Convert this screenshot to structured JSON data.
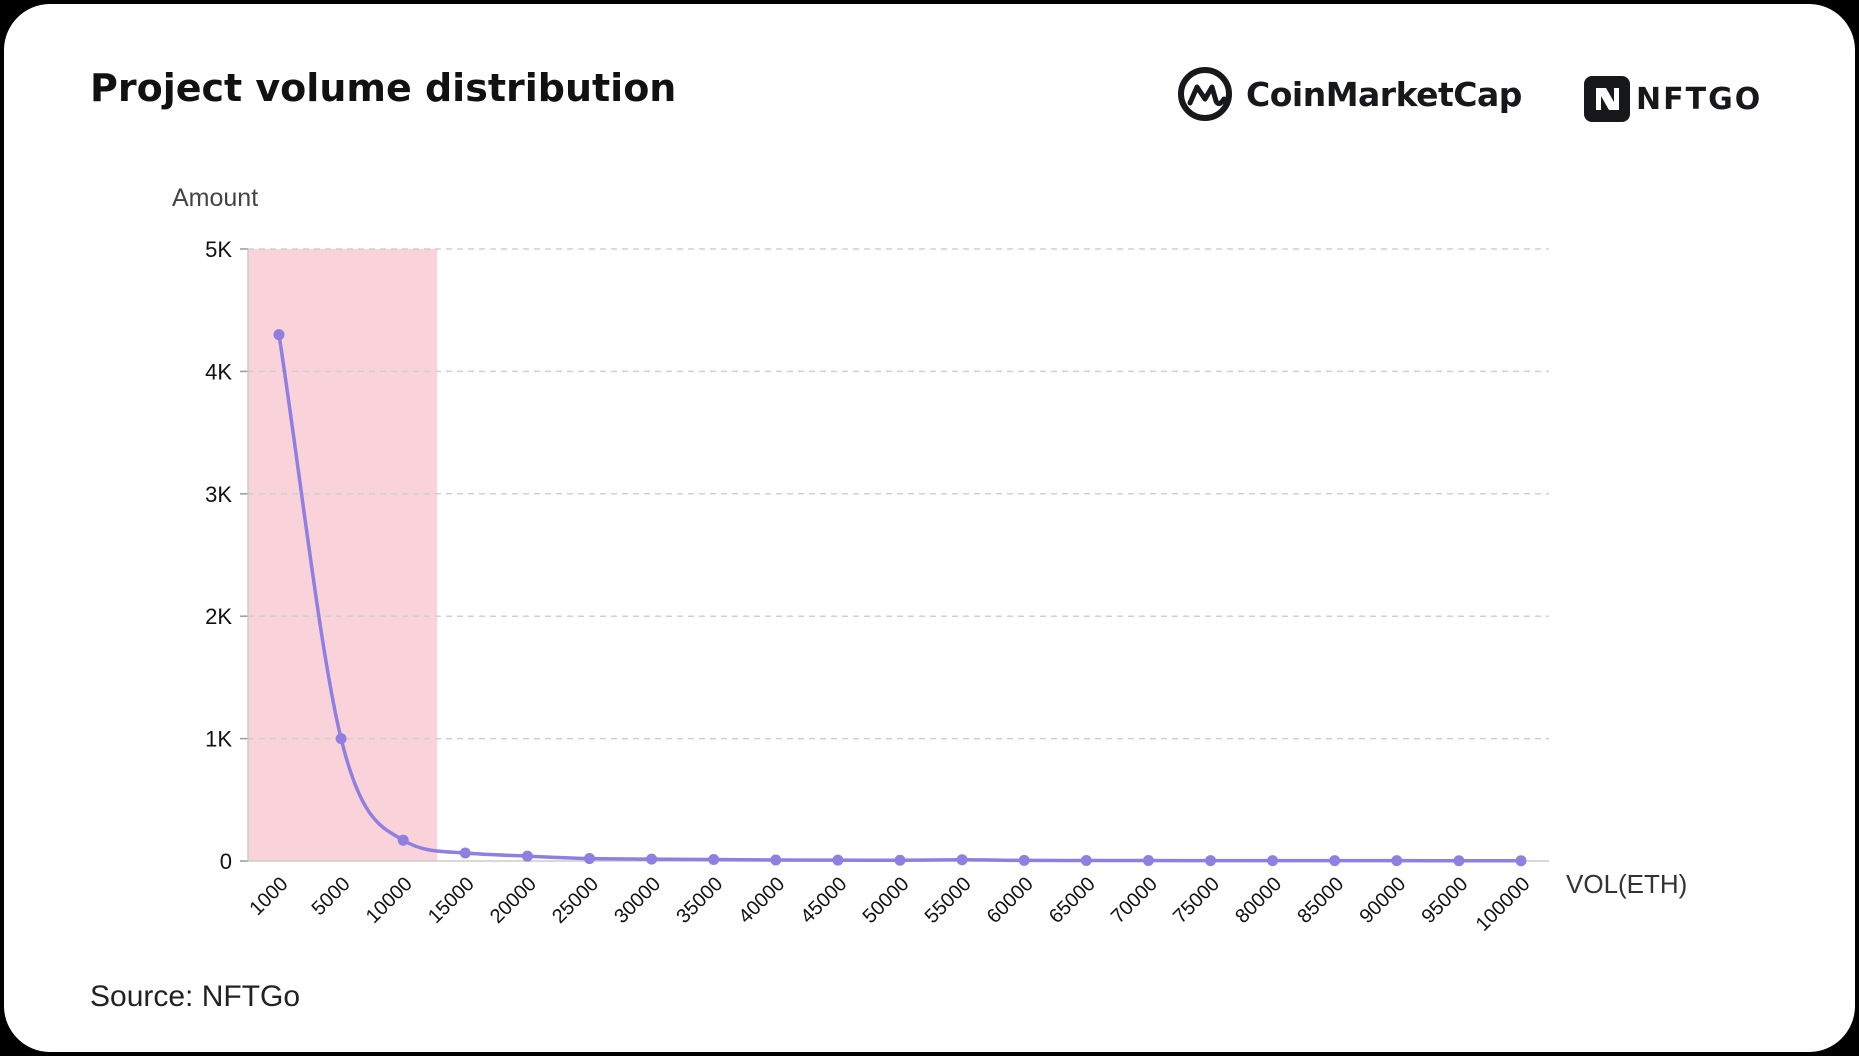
{
  "header": {
    "title": "Project volume distribution",
    "brand_cmc": "CoinMarketCap",
    "brand_nftgo": "NFTGO"
  },
  "footer": {
    "source": "Source: NFTGo"
  },
  "colors": {
    "line": "#8f7fe0",
    "highlight": "#f9d2da",
    "grid": "#d0d0d0",
    "axis": "#cccccc",
    "text": "#111111"
  },
  "chart_data": {
    "type": "line",
    "title": "Project volume distribution",
    "xlabel": "VOL(ETH)",
    "ylabel": "Amount",
    "ylim": [
      0,
      5000
    ],
    "yticks": [
      0,
      1000,
      2000,
      3000,
      4000,
      5000
    ],
    "ytick_labels": [
      "0",
      "1K",
      "2K",
      "3K",
      "4K",
      "5K"
    ],
    "grid": "horizontal dashed",
    "smooth": true,
    "highlight_range": [
      "1000",
      "10000"
    ],
    "categories": [
      "1000",
      "5000",
      "10000",
      "15000",
      "20000",
      "25000",
      "30000",
      "35000",
      "40000",
      "45000",
      "50000",
      "55000",
      "60000",
      "65000",
      "70000",
      "75000",
      "80000",
      "85000",
      "90000",
      "95000",
      "100000"
    ],
    "series": [
      {
        "values": [
          4300,
          1000,
          170,
          65,
          40,
          20,
          15,
          12,
          8,
          7,
          6,
          10,
          5,
          4,
          4,
          3,
          3,
          3,
          3,
          2,
          2
        ]
      }
    ]
  }
}
